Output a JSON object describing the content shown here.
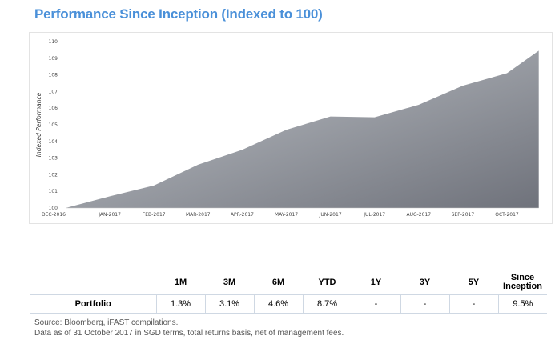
{
  "title": "Performance Since Inception (Indexed to 100)",
  "chart_data": {
    "type": "area",
    "ylabel": "Indexed Performance",
    "ylim": [
      100,
      110
    ],
    "yticks": [
      "100",
      "101",
      "102",
      "103",
      "104",
      "105",
      "106",
      "107",
      "108",
      "109",
      "110"
    ],
    "categories": [
      "DEC-2016",
      "JAN-2017",
      "FEB-2017",
      "MAR-2017",
      "APR-2017",
      "MAY-2017",
      "JUN-2017",
      "JUL-2017",
      "AUG-2017",
      "SEP-2017",
      "OCT-2017"
    ],
    "points": [
      {
        "x": 0,
        "y": 100.0
      },
      {
        "x": 1,
        "y": 100.7
      },
      {
        "x": 2,
        "y": 101.35
      },
      {
        "x": 3,
        "y": 102.6
      },
      {
        "x": 4,
        "y": 103.5
      },
      {
        "x": 5,
        "y": 104.7
      },
      {
        "x": 6,
        "y": 105.5
      },
      {
        "x": 7,
        "y": 105.45
      },
      {
        "x": 8,
        "y": 106.2
      },
      {
        "x": 9,
        "y": 107.35
      },
      {
        "x": 10,
        "y": 108.1
      },
      {
        "x": 10.72,
        "y": 109.45
      }
    ],
    "fill_colors": [
      "#c3c7cc",
      "#6f727b"
    ],
    "grid": false
  },
  "table": {
    "headers": [
      "",
      "1M",
      "3M",
      "6M",
      "YTD",
      "1Y",
      "3Y",
      "5Y",
      "Since Inception"
    ],
    "row_label": "Portfolio",
    "values": [
      "1.3%",
      "3.1%",
      "4.6%",
      "8.7%",
      "-",
      "-",
      "-",
      "9.5%"
    ]
  },
  "notes": {
    "source": "Source: Bloomberg, iFAST compilations.",
    "data_as_of": "Data as of 31 October 2017 in SGD terms, total returns basis, net of management fees."
  }
}
